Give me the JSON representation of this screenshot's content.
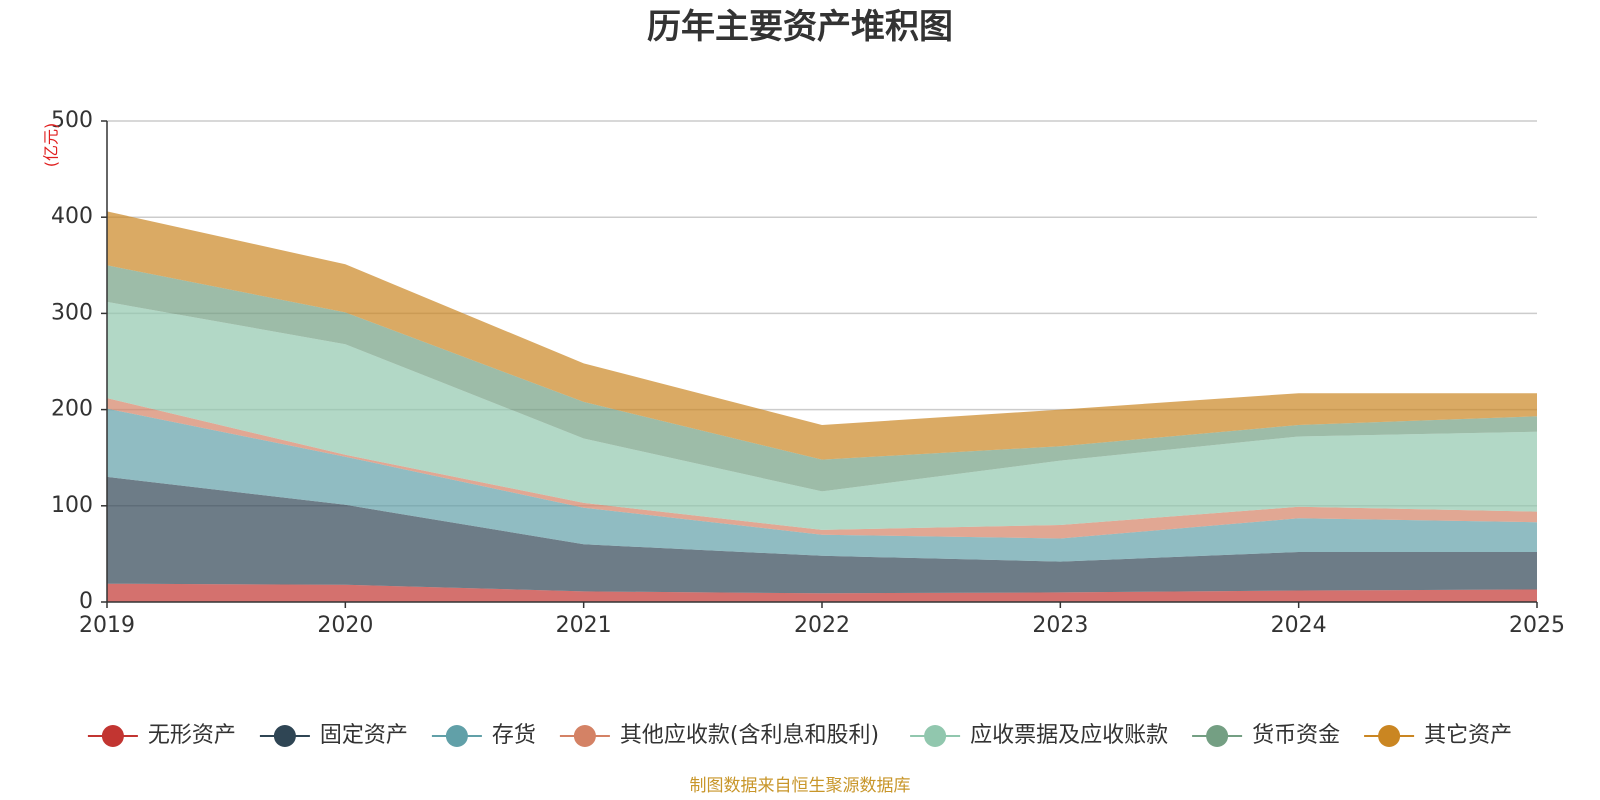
{
  "chart_data": {
    "type": "area",
    "stacked": true,
    "title": "历年主要资产堆积图",
    "ylabel": "(亿元)",
    "xlabel": "",
    "categories": [
      "2019",
      "2020",
      "2021",
      "2022",
      "2023",
      "2024",
      "2025"
    ],
    "ylim": [
      0,
      500
    ],
    "yticks": [
      0,
      100,
      200,
      300,
      400,
      500
    ],
    "grid": true,
    "legend_position": "bottom",
    "series": [
      {
        "name": "无形资产",
        "color": "#c23531",
        "values": [
          19,
          18,
          11,
          9,
          10,
          12,
          13
        ]
      },
      {
        "name": "固定资产",
        "color": "#2f4554",
        "values": [
          111,
          83,
          49,
          39,
          32,
          40,
          39
        ]
      },
      {
        "name": "存货",
        "color": "#61a0a8",
        "values": [
          71,
          50,
          38,
          22,
          24,
          35,
          31
        ]
      },
      {
        "name": "其他应收款(含利息和股利)",
        "color": "#d48265",
        "values": [
          11,
          2,
          5,
          5,
          14,
          12,
          11
        ]
      },
      {
        "name": "应收票据及应收账款",
        "color": "#91c7ae",
        "values": [
          100,
          115,
          67,
          40,
          67,
          73,
          83
        ]
      },
      {
        "name": "货币资金",
        "color": "#749f83",
        "values": [
          38,
          33,
          38,
          33,
          15,
          12,
          16
        ]
      },
      {
        "name": "其它资产",
        "color": "#ca8622",
        "values": [
          56,
          50,
          40,
          36,
          38,
          33,
          24
        ]
      }
    ],
    "source": "制图数据来自恒生聚源数据库",
    "source_color": "#c8962a"
  }
}
